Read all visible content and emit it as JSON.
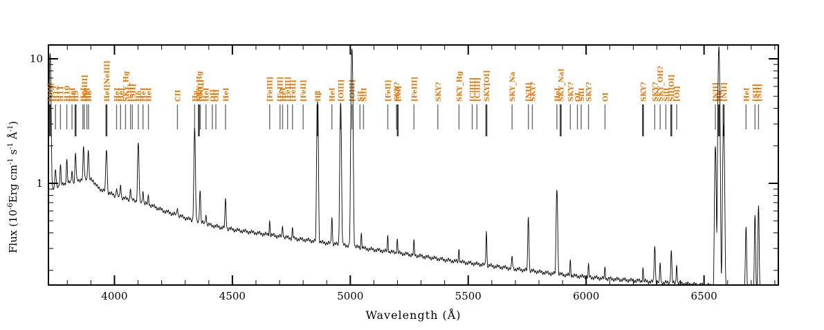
{
  "figure": {
    "background": "#ffffff",
    "frame_color": "#000000",
    "spectrum_color": "#000000",
    "line_label_color": "#e6780a",
    "line_tick_color": "#6a6a6a",
    "line_tick_strong_color": "#3c3c3c"
  },
  "chart_data": {
    "type": "line",
    "title": "",
    "xlabel": "Wavelength (Å)",
    "ylabel": "Flux (10-6Erg cm-1 s-1 Å-1)",
    "ylabel_parts": [
      {
        "t": "Flux (10"
      },
      {
        "t": "-6",
        "sup": true
      },
      {
        "t": "Erg cm"
      },
      {
        "t": "-1",
        "sup": true
      },
      {
        "t": " s"
      },
      {
        "t": "-1",
        "sup": true
      },
      {
        "t": " Å"
      },
      {
        "t": "-1",
        "sup": true
      },
      {
        "t": ")"
      }
    ],
    "x_range": [
      3720,
      6815
    ],
    "y_scale": "log",
    "y_range": [
      0.152,
      12.9
    ],
    "x_ticks": [
      4000,
      4500,
      5000,
      5500,
      6000,
      6500
    ],
    "x_minor_step": 100,
    "y_ticks": [
      1,
      10
    ],
    "y_tick_labels": [
      "1",
      "10"
    ],
    "y_minor_ticks": [
      0.2,
      0.3,
      0.4,
      0.5,
      0.6,
      0.7,
      0.8,
      0.9,
      2,
      3,
      4,
      5,
      6,
      7,
      8,
      9
    ],
    "grid": false,
    "legend": false,
    "continuum": [
      [
        3720,
        0.88
      ],
      [
        3760,
        0.95
      ],
      [
        3800,
        1.0
      ],
      [
        3840,
        1.05
      ],
      [
        3880,
        1.1
      ],
      [
        3910,
        1.05
      ],
      [
        3930,
        0.92
      ],
      [
        3950,
        0.88
      ],
      [
        3970,
        0.85
      ],
      [
        4000,
        0.8
      ],
      [
        4040,
        0.76
      ],
      [
        4080,
        0.73
      ],
      [
        4120,
        0.7
      ],
      [
        4160,
        0.66
      ],
      [
        4210,
        0.6
      ],
      [
        4260,
        0.56
      ],
      [
        4310,
        0.52
      ],
      [
        4360,
        0.49
      ],
      [
        4410,
        0.46
      ],
      [
        4460,
        0.44
      ],
      [
        4520,
        0.42
      ],
      [
        4580,
        0.405
      ],
      [
        4640,
        0.39
      ],
      [
        4700,
        0.375
      ],
      [
        4760,
        0.36
      ],
      [
        4820,
        0.35
      ],
      [
        4880,
        0.335
      ],
      [
        4940,
        0.325
      ],
      [
        5000,
        0.315
      ],
      [
        5060,
        0.3
      ],
      [
        5120,
        0.29
      ],
      [
        5180,
        0.28
      ],
      [
        5240,
        0.27
      ],
      [
        5300,
        0.26
      ],
      [
        5360,
        0.25
      ],
      [
        5420,
        0.24
      ],
      [
        5480,
        0.232
      ],
      [
        5540,
        0.225
      ],
      [
        5600,
        0.217
      ],
      [
        5660,
        0.21
      ],
      [
        5720,
        0.203
      ],
      [
        5780,
        0.197
      ],
      [
        5840,
        0.19
      ],
      [
        5900,
        0.185
      ],
      [
        5960,
        0.18
      ],
      [
        6020,
        0.176
      ],
      [
        6080,
        0.172
      ],
      [
        6140,
        0.169
      ],
      [
        6200,
        0.166
      ],
      [
        6260,
        0.163
      ],
      [
        6320,
        0.16
      ],
      [
        6380,
        0.158
      ],
      [
        6440,
        0.155
      ],
      [
        6500,
        0.152
      ],
      [
        6560,
        0.15
      ],
      [
        6620,
        0.147
      ],
      [
        6680,
        0.144
      ],
      [
        6730,
        0.14
      ],
      [
        6770,
        0.13
      ],
      [
        6795,
        0.118
      ],
      [
        6815,
        0.105
      ]
    ],
    "emission_lines": [
      {
        "wl": 3727,
        "peak": 11.0,
        "fwhm": 7
      },
      {
        "wl": 3750,
        "peak": 1.3,
        "fwhm": 5
      },
      {
        "wl": 3771,
        "peak": 1.4,
        "fwhm": 5
      },
      {
        "wl": 3798,
        "peak": 1.55,
        "fwhm": 5
      },
      {
        "wl": 3820,
        "peak": 1.3,
        "fwhm": 4
      },
      {
        "wl": 3835,
        "peak": 1.75,
        "fwhm": 5
      },
      {
        "wl": 3869,
        "peak": 1.95,
        "fwhm": 5
      },
      {
        "wl": 3889,
        "peak": 1.9,
        "fwhm": 5
      },
      {
        "wl": 3966,
        "peak": 1.9,
        "fwhm": 6
      },
      {
        "wl": 4009,
        "peak": 0.93,
        "fwhm": 4
      },
      {
        "wl": 4026,
        "peak": 1.0,
        "fwhm": 4
      },
      {
        "wl": 4068,
        "peak": 0.93,
        "fwhm": 4
      },
      {
        "wl": 4101,
        "peak": 2.1,
        "fwhm": 6
      },
      {
        "wl": 4121,
        "peak": 0.9,
        "fwhm": 4
      },
      {
        "wl": 4144,
        "peak": 0.8,
        "fwhm": 4
      },
      {
        "wl": 4267,
        "peak": 0.65,
        "fwhm": 4
      },
      {
        "wl": 4340,
        "peak": 2.7,
        "fwhm": 6
      },
      {
        "wl": 4363,
        "peak": 0.9,
        "fwhm": 5
      },
      {
        "wl": 4388,
        "peak": 0.58,
        "fwhm": 4
      },
      {
        "wl": 4471,
        "peak": 0.75,
        "fwhm": 5
      },
      {
        "wl": 4658,
        "peak": 0.5,
        "fwhm": 4
      },
      {
        "wl": 4713,
        "peak": 0.46,
        "fwhm": 4
      },
      {
        "wl": 4755,
        "peak": 0.44,
        "fwhm": 4
      },
      {
        "wl": 4861,
        "peak": 4.7,
        "fwhm": 6
      },
      {
        "wl": 4922,
        "peak": 0.55,
        "fwhm": 4
      },
      {
        "wl": 4959,
        "peak": 4.4,
        "fwhm": 6
      },
      {
        "wl": 5007,
        "peak": 12.3,
        "fwhm": 7
      },
      {
        "wl": 5047,
        "peak": 0.4,
        "fwhm": 4
      },
      {
        "wl": 5159,
        "peak": 0.38,
        "fwhm": 4
      },
      {
        "wl": 5199,
        "peak": 0.36,
        "fwhm": 4
      },
      {
        "wl": 5270,
        "peak": 0.34,
        "fwhm": 4
      },
      {
        "wl": 5461,
        "peak": 0.3,
        "fwhm": 4
      },
      {
        "wl": 5577,
        "peak": 0.42,
        "fwhm": 4
      },
      {
        "wl": 5686,
        "peak": 0.26,
        "fwhm": 4
      },
      {
        "wl": 5755,
        "peak": 0.55,
        "fwhm": 5
      },
      {
        "wl": 5876,
        "peak": 0.92,
        "fwhm": 6
      },
      {
        "wl": 5933,
        "peak": 0.24,
        "fwhm": 4
      },
      {
        "wl": 6010,
        "peak": 0.22,
        "fwhm": 4
      },
      {
        "wl": 6080,
        "peak": 0.21,
        "fwhm": 4
      },
      {
        "wl": 6241,
        "peak": 0.21,
        "fwhm": 4
      },
      {
        "wl": 6291,
        "peak": 0.32,
        "fwhm": 5
      },
      {
        "wl": 6314,
        "peak": 0.23,
        "fwhm": 4
      },
      {
        "wl": 6361,
        "peak": 0.29,
        "fwhm": 5
      },
      {
        "wl": 6384,
        "peak": 0.23,
        "fwhm": 4
      },
      {
        "wl": 6548,
        "peak": 2.0,
        "fwhm": 6
      },
      {
        "wl": 6563,
        "peak": 12.8,
        "fwhm": 7
      },
      {
        "wl": 6583,
        "peak": 3.0,
        "fwhm": 7
      },
      {
        "wl": 6678,
        "peak": 0.46,
        "fwhm": 5
      },
      {
        "wl": 6716,
        "peak": 0.55,
        "fwhm": 5
      },
      {
        "wl": 6731,
        "peak": 0.65,
        "fwhm": 5
      }
    ],
    "line_labels": [
      {
        "text": "[OII]",
        "wl": 3727,
        "tick": 2
      },
      {
        "text": "H12",
        "wl": 3750,
        "tick": 1
      },
      {
        "text": "H11",
        "wl": 3771,
        "tick": 1
      },
      {
        "text": "H10",
        "wl": 3798,
        "tick": 1
      },
      {
        "text": "HeI",
        "wl": 3820,
        "tick": 1
      },
      {
        "text": "H9",
        "wl": 3835,
        "tick": 2
      },
      {
        "text": "HeI",
        "wl": 3866,
        "tick": 1
      },
      {
        "text": "[NeIII]",
        "wl": 3872,
        "tick": 1
      },
      {
        "text": "HeI",
        "wl": 3883,
        "tick": 1
      },
      {
        "text": "H8",
        "wl": 3890,
        "tick": 1
      },
      {
        "text": "HeI[NeIII]",
        "wl": 3966,
        "tick": 2
      },
      {
        "text": "HeI",
        "wl": 4009,
        "tick": 1
      },
      {
        "text": "HeI",
        "wl": 4026,
        "tick": 1
      },
      {
        "text": "SKY_Hg",
        "wl": 4047,
        "tick": 1
      },
      {
        "text": "[SII]",
        "wl": 4068,
        "tick": 1
      },
      {
        "text": "[SII]",
        "wl": 4076,
        "tick": 1
      },
      {
        "text": "Hδ",
        "wl": 4101,
        "tick": 1
      },
      {
        "text": "HeI",
        "wl": 4121,
        "tick": 1
      },
      {
        "text": "HeI",
        "wl": 4144,
        "tick": 1
      },
      {
        "text": "CII",
        "wl": 4267,
        "tick": 1
      },
      {
        "text": "Hγ",
        "wl": 4340,
        "tick": 1
      },
      {
        "text": "SKY_Hg",
        "wl": 4358,
        "tick": 2
      },
      {
        "text": "[OIII]",
        "wl": 4364,
        "tick": 1
      },
      {
        "text": "HeI",
        "wl": 4388,
        "tick": 1
      },
      {
        "text": "OII",
        "wl": 4415,
        "tick": 1
      },
      {
        "text": "OII",
        "wl": 4430,
        "tick": 1
      },
      {
        "text": "HeI",
        "wl": 4471,
        "tick": 1
      },
      {
        "text": "[FeIII]",
        "wl": 4658,
        "tick": 1
      },
      {
        "text": "[FeIII]",
        "wl": 4702,
        "tick": 1
      },
      {
        "text": "HeI",
        "wl": 4713,
        "tick": 1
      },
      {
        "text": "[FeIII]",
        "wl": 4734,
        "tick": 1
      },
      {
        "text": "[FeII]",
        "wl": 4755,
        "tick": 1
      },
      {
        "text": "[FeII]",
        "wl": 4800,
        "tick": 1
      },
      {
        "text": "Hβ",
        "wl": 4861,
        "tick": 2
      },
      {
        "text": "HeI",
        "wl": 4922,
        "tick": 1
      },
      {
        "text": "[OIII]",
        "wl": 4959,
        "tick": 1
      },
      {
        "text": "[OIII]",
        "wl": 5007,
        "tick": 1
      },
      {
        "text": "SiI",
        "wl": 5041,
        "tick": 1
      },
      {
        "text": "SiII",
        "wl": 5056,
        "tick": 1
      },
      {
        "text": "[FeII]",
        "wl": 5159,
        "tick": 1
      },
      {
        "text": "SKY?",
        "wl": 5196,
        "tick": 1
      },
      {
        "text": "[NI]",
        "wl": 5201,
        "tick": 2
      },
      {
        "text": "[FeIII]",
        "wl": 5270,
        "tick": 1
      },
      {
        "text": "SKY?",
        "wl": 5371,
        "tick": 1
      },
      {
        "text": "SKY_Hg",
        "wl": 5461,
        "tick": 1
      },
      {
        "text": "[ClIII]",
        "wl": 5517,
        "tick": 1
      },
      {
        "text": "[ClIII]",
        "wl": 5537,
        "tick": 1
      },
      {
        "text": "SKY[OI]",
        "wl": 5577,
        "tick": 2
      },
      {
        "text": "SKY_Na",
        "wl": 5686,
        "tick": 1
      },
      {
        "text": "[NII]",
        "wl": 5755,
        "tick": 1
      },
      {
        "text": "SKY?",
        "wl": 5772,
        "tick": 1
      },
      {
        "text": "HeI",
        "wl": 5876,
        "tick": 1
      },
      {
        "text": "SKY_NaI",
        "wl": 5892,
        "tick": 2
      },
      {
        "text": "SKY?",
        "wl": 5933,
        "tick": 1
      },
      {
        "text": "OI",
        "wl": 5963,
        "tick": 1
      },
      {
        "text": "SiII",
        "wl": 5979,
        "tick": 1
      },
      {
        "text": "SKY?",
        "wl": 6010,
        "tick": 1
      },
      {
        "text": "OI",
        "wl": 6080,
        "tick": 1
      },
      {
        "text": "SKY?",
        "wl": 6241,
        "tick": 2
      },
      {
        "text": "SKY?",
        "wl": 6291,
        "tick": 1
      },
      {
        "text": "SKY_OH?",
        "wl": 6314,
        "tick": 1
      },
      {
        "text": "SiII",
        "wl": 6338,
        "tick": 1
      },
      {
        "text": "SII[OI]",
        "wl": 6361,
        "tick": 2
      },
      {
        "text": "[OI]",
        "wl": 6384,
        "tick": 1
      },
      {
        "text": "[NII]",
        "wl": 6548,
        "tick": 1
      },
      {
        "text": "Hα",
        "wl": 6563,
        "tick": 2
      },
      {
        "text": "[NII]",
        "wl": 6583,
        "tick": 2
      },
      {
        "text": "HeI",
        "wl": 6678,
        "tick": 1
      },
      {
        "text": "[SII]",
        "wl": 6716,
        "tick": 1
      },
      {
        "text": "[SII]",
        "wl": 6731,
        "tick": 1
      }
    ]
  }
}
